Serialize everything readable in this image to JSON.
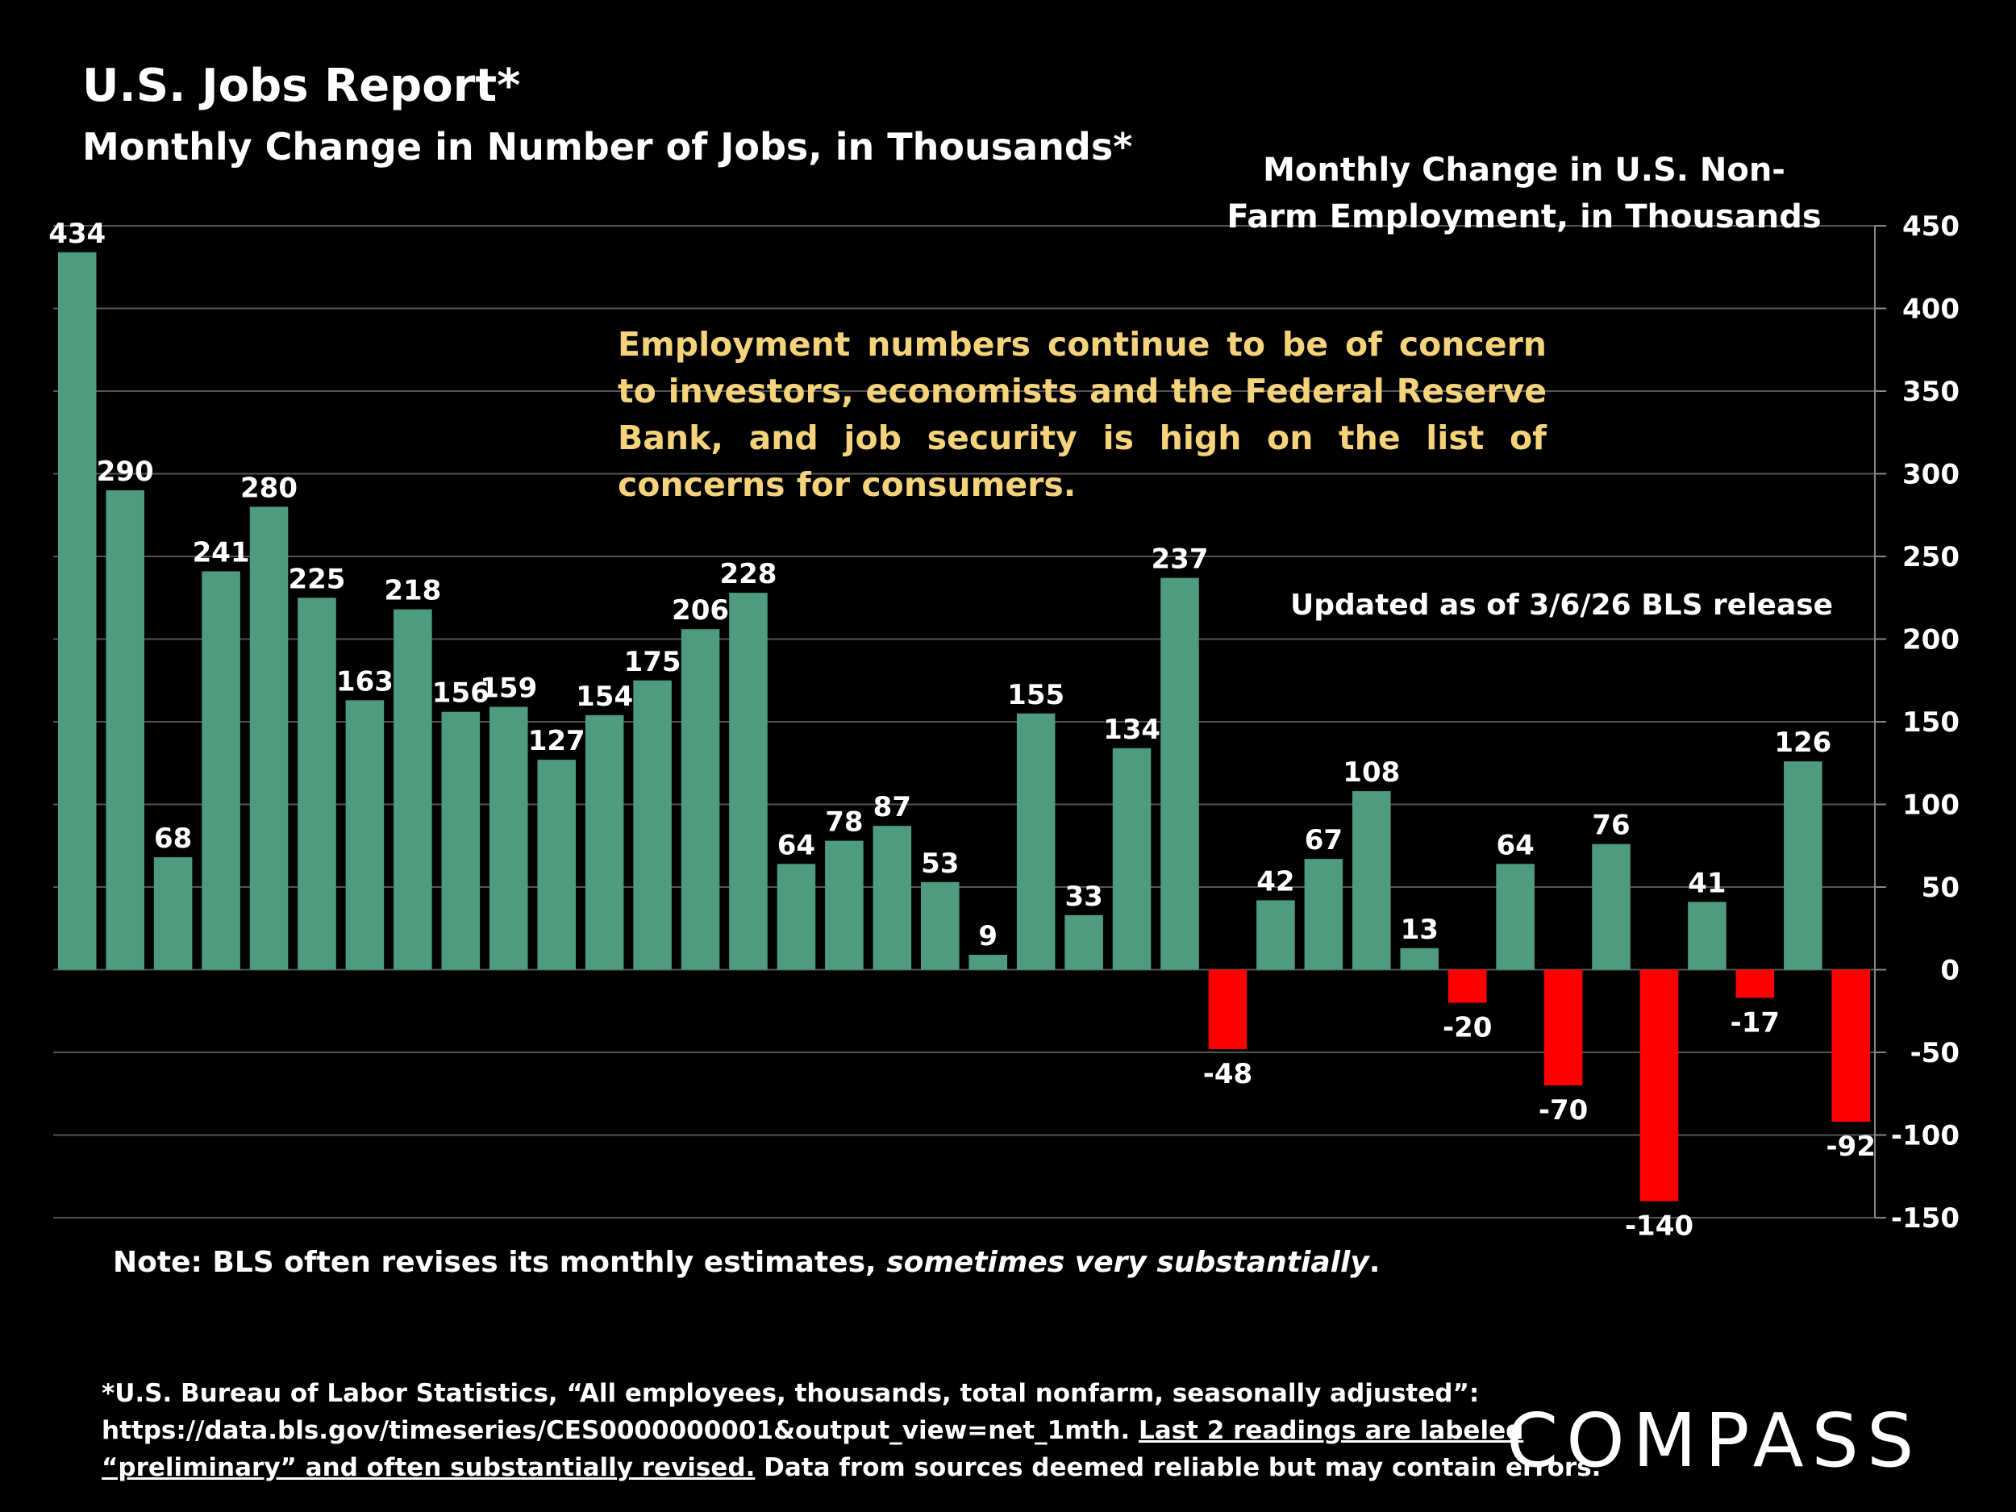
{
  "header": {
    "title": "U.S. Jobs Report*",
    "subtitle": "Monthly Change in Number of Jobs, in Thousands*"
  },
  "chart_heading": "Monthly Change in U.S. Non-Farm Employment, in Thousands",
  "callout": "Employment numbers continue to be of concern to investors, economists and the Federal Reserve Bank, and job security is high on the list of concerns for consumers.",
  "updated_note": "Updated as of 3/6/26 BLS release",
  "note": {
    "text": "Note: BLS often revises its monthly estimates, ",
    "emphasis": "sometimes very substantially",
    "end": "."
  },
  "footnote": {
    "line1": "*U.S. Bureau of Labor Statistics, “All employees, thousands, total nonfarm, seasonally adjusted”:",
    "line2_plain": "https://data.bls.gov/timeseries/CES0000000001&output_view=net_1mth.",
    "line2_underlined": "Last 2 readings are labeled",
    "line3_underlined": "“preliminary” and often substantially revised.",
    "line3_plain": "Data from sources deemed reliable but may contain errors."
  },
  "logo": {
    "text": "COMPASS"
  },
  "colors": {
    "positive": "#4e9b80",
    "negative": "#ff0000",
    "callout": "#f4d37b",
    "grid": "#555555",
    "background": "#000000"
  },
  "chart_data": {
    "type": "bar",
    "title": "Monthly Change in U.S. Non-Farm Employment, in Thousands",
    "values": [
      434,
      290,
      68,
      241,
      280,
      225,
      163,
      218,
      156,
      159,
      127,
      154,
      175,
      206,
      228,
      64,
      78,
      87,
      53,
      9,
      155,
      33,
      134,
      237,
      -48,
      42,
      67,
      108,
      13,
      -20,
      64,
      -70,
      76,
      -140,
      41,
      -17,
      126,
      -92
    ],
    "ylim": [
      -150,
      450
    ],
    "yticks": [
      450,
      400,
      350,
      300,
      250,
      200,
      150,
      100,
      50,
      0,
      -50,
      -100,
      -150
    ],
    "y_axis_side": "right",
    "grid": true,
    "data_labels": true
  }
}
